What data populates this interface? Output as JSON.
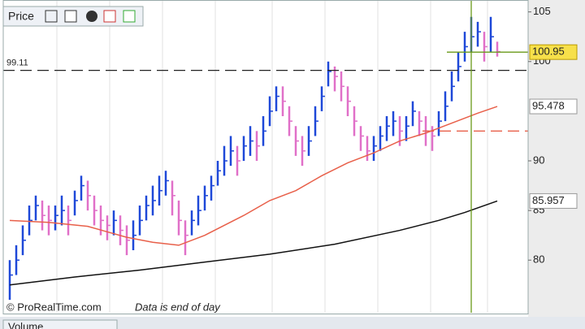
{
  "header": {
    "title": "Price"
  },
  "chart_data": {
    "type": "ohlc",
    "high": [
      80,
      81.5,
      83.5,
      85.5,
      86.5,
      86,
      85.5,
      85.5,
      86.5,
      85.5,
      87,
      88.5,
      88,
      86.5,
      85.5,
      84.5,
      85,
      84.5,
      83.5,
      84,
      85.5,
      86.5,
      87.5,
      88.5,
      89,
      88,
      86,
      84,
      85,
      86.5,
      87.5,
      88.5,
      90,
      91.5,
      92.5,
      91.5,
      92.5,
      93.5,
      93,
      94.5,
      96.5,
      97.5,
      97.5,
      95.5,
      93.5,
      92.5,
      93.5,
      95.5,
      97.5,
      100,
      99.5,
      99,
      97.5,
      95.5,
      93.5,
      92.5,
      92.5,
      93.5,
      94.5,
      95,
      94.5,
      94.5,
      96,
      95,
      94.5,
      93.5,
      95,
      97,
      99,
      101,
      103,
      104.5,
      104,
      103,
      104.5,
      102
    ],
    "low": [
      76,
      78.5,
      80.5,
      82.5,
      84,
      83,
      82.5,
      83,
      83.5,
      82.5,
      84.5,
      86,
      85,
      83.5,
      82.5,
      82,
      82.5,
      81.5,
      80.5,
      81,
      82.5,
      84,
      84.5,
      85.5,
      86.5,
      84.5,
      82.5,
      80.5,
      82.5,
      83.5,
      85,
      86,
      87.5,
      88.5,
      89.5,
      88.5,
      90,
      90.5,
      90,
      91.5,
      93.5,
      95,
      94.5,
      92.5,
      90.5,
      89.5,
      90.5,
      92.5,
      95,
      97.5,
      97,
      96,
      94.5,
      92.5,
      91,
      90,
      90,
      91,
      92,
      92.5,
      91.5,
      92,
      93.5,
      92.5,
      91.5,
      91,
      92.5,
      94,
      96,
      98,
      100,
      101,
      101.5,
      100,
      101,
      100.5
    ],
    "close": [
      78.5,
      80,
      82,
      84,
      85.5,
      84.5,
      84,
      84.5,
      85,
      84,
      86,
      87.5,
      86.5,
      85,
      84,
      83.5,
      84,
      83,
      82,
      82.5,
      84,
      85.5,
      86,
      87,
      88,
      86.5,
      84,
      82.5,
      84,
      85,
      86.5,
      87.5,
      89,
      90,
      91,
      90,
      91.5,
      92,
      91.5,
      93,
      95,
      96.5,
      96,
      94,
      92,
      91,
      92,
      94,
      96.5,
      99,
      98.5,
      97.5,
      96,
      94,
      92.5,
      91,
      91.5,
      92.5,
      93.5,
      94,
      93,
      93.5,
      95,
      94,
      93,
      92.5,
      94,
      95.5,
      97.5,
      99.5,
      101.5,
      102.5,
      103,
      101.5,
      102.5,
      101
    ],
    "up_color": "#1e48d8",
    "down_color": "#e070c8",
    "ylim": [
      74.7,
      106.2
    ],
    "yticks": [
      80,
      85,
      90,
      100,
      105
    ],
    "moving_averages": [
      {
        "color": "#e8604a",
        "x": [
          0,
          6,
          12,
          18,
          22,
          26,
          30,
          36,
          40,
          44,
          48,
          52,
          56,
          60,
          64,
          68,
          72,
          75
        ],
        "values": [
          84,
          83.8,
          83.4,
          82.3,
          81.8,
          81.5,
          82.5,
          84.5,
          86,
          87,
          88.5,
          89.8,
          90.8,
          92,
          92.8,
          93.8,
          94.8,
          95.478
        ],
        "last_label": "95.478"
      },
      {
        "color": "#111111",
        "x": [
          0,
          10,
          20,
          30,
          40,
          50,
          60,
          66,
          70,
          75
        ],
        "values": [
          77.5,
          78.3,
          79,
          79.8,
          80.6,
          81.6,
          83,
          84,
          84.8,
          85.957
        ],
        "last_label": "85.957"
      }
    ],
    "reference_lines": [
      {
        "value": 99.11,
        "label": "99.11",
        "color": "#222222"
      },
      {
        "value": 93,
        "color": "#e8604a"
      }
    ],
    "cursor": {
      "value": 100.95,
      "label": "100.95",
      "x": 71,
      "color": "#6a9a1a"
    }
  },
  "footer": {
    "copyright": "© ProRealTime.com",
    "note": "Data is end of day"
  },
  "lower_panel": {
    "title": "Volume"
  }
}
